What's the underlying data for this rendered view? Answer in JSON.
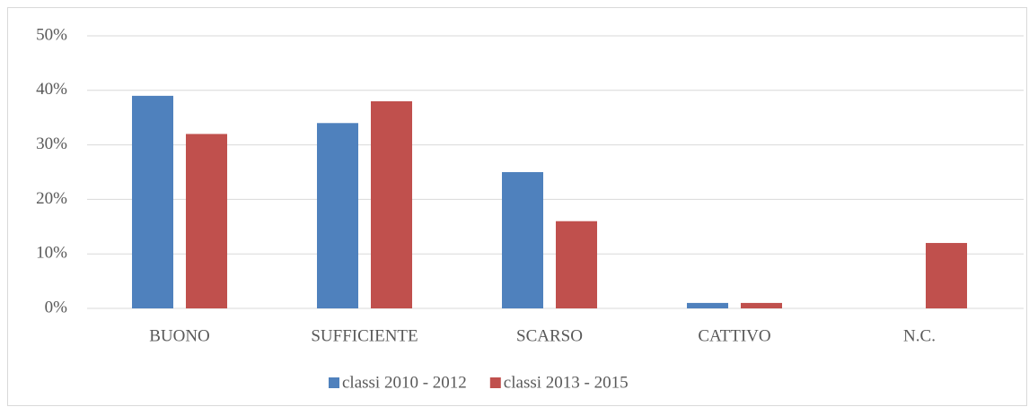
{
  "chart_data": {
    "type": "bar",
    "categories": [
      "BUONO",
      "SUFFICIENTE",
      "SCARSO",
      "CATTIVO",
      "N.C."
    ],
    "series": [
      {
        "name": "classi 2010 - 2012",
        "color": "#4f81bd",
        "values": [
          39,
          34,
          25,
          1,
          0
        ]
      },
      {
        "name": "classi 2013 - 2015",
        "color": "#c0504d",
        "values": [
          32,
          38,
          16,
          1,
          12
        ]
      }
    ],
    "ylim": [
      0,
      50
    ],
    "yticks": [
      {
        "value": 0,
        "label": "0%"
      },
      {
        "value": 10,
        "label": "10%"
      },
      {
        "value": 20,
        "label": "20%"
      },
      {
        "value": 30,
        "label": "30%"
      },
      {
        "value": 40,
        "label": "40%"
      },
      {
        "value": 50,
        "label": "50%"
      }
    ],
    "grid": true,
    "legend": "bottom"
  }
}
